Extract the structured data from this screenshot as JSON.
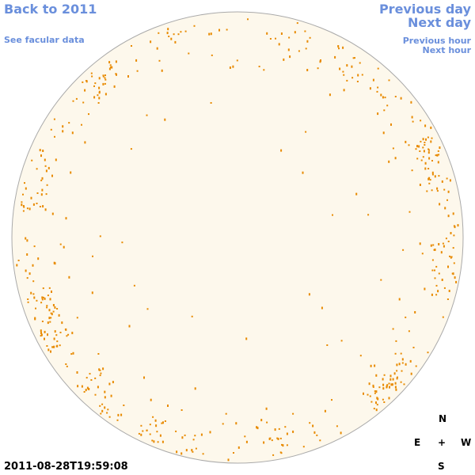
{
  "links": {
    "back": "Back to 2011",
    "facular": "See facular data",
    "prev_day": "Previous day",
    "next_day": "Next day",
    "prev_hour": "Previous hour",
    "next_hour": "Next hour"
  },
  "timestamp": "2011-08-28T19:59:08",
  "compass": {
    "north": "N",
    "east": "E",
    "center": "+",
    "west": "W",
    "south": "S"
  }
}
